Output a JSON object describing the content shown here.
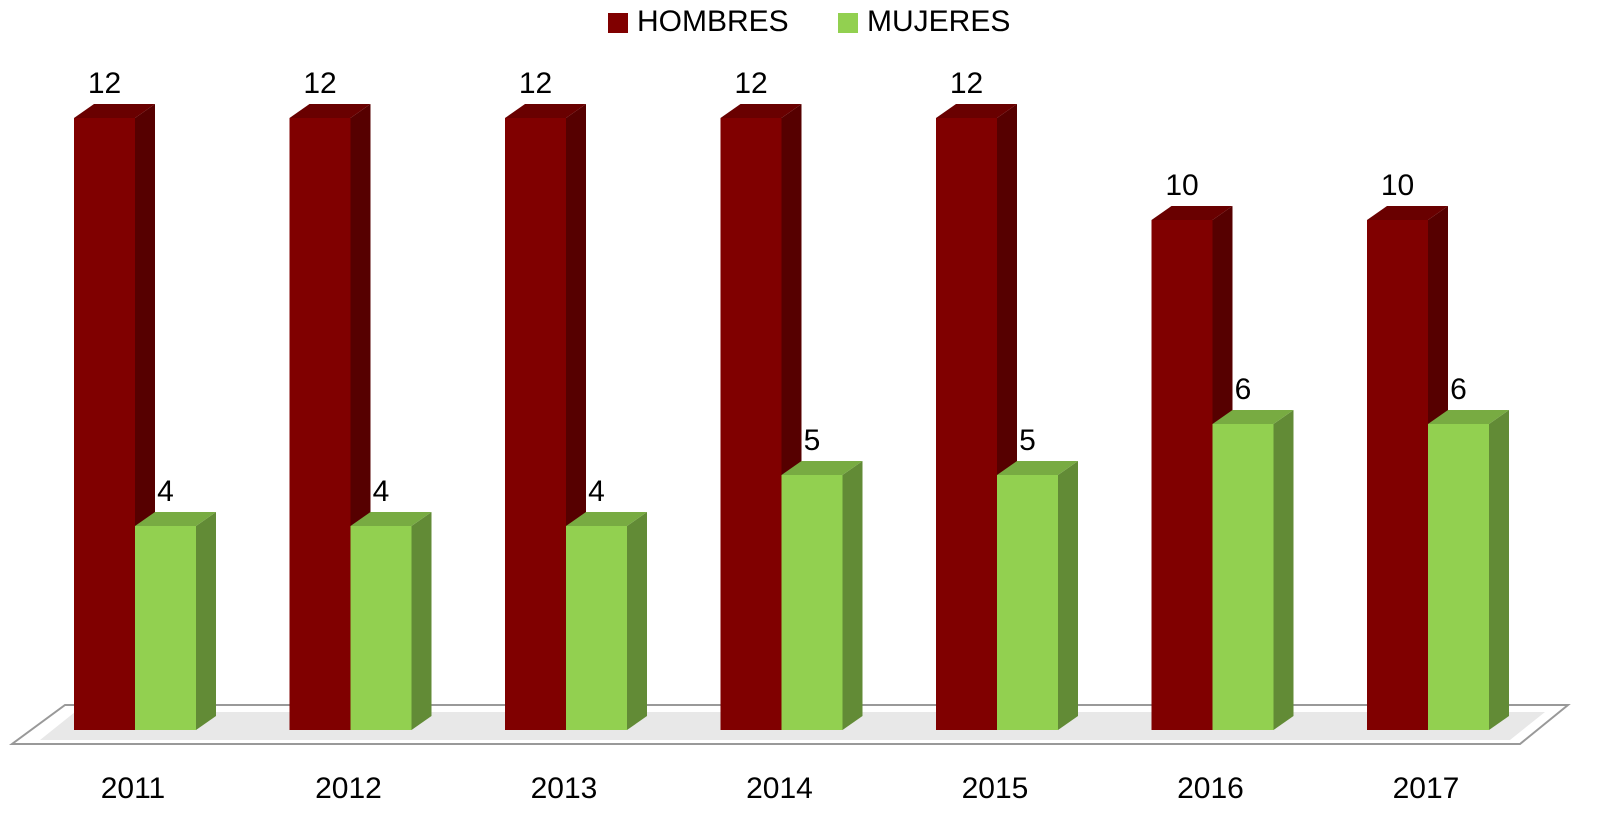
{
  "chart_data": {
    "type": "bar3d",
    "categories": [
      "2011",
      "2012",
      "2013",
      "2014",
      "2015",
      "2016",
      "2017"
    ],
    "series": [
      {
        "name": "HOMBRES",
        "color": "#800000",
        "values": [
          12,
          12,
          12,
          12,
          12,
          10,
          10
        ]
      },
      {
        "name": "MUJERES",
        "color": "#92d050",
        "values": [
          4,
          4,
          4,
          5,
          5,
          6,
          6
        ]
      }
    ],
    "ylim": [
      0,
      12
    ],
    "legend": "top"
  }
}
